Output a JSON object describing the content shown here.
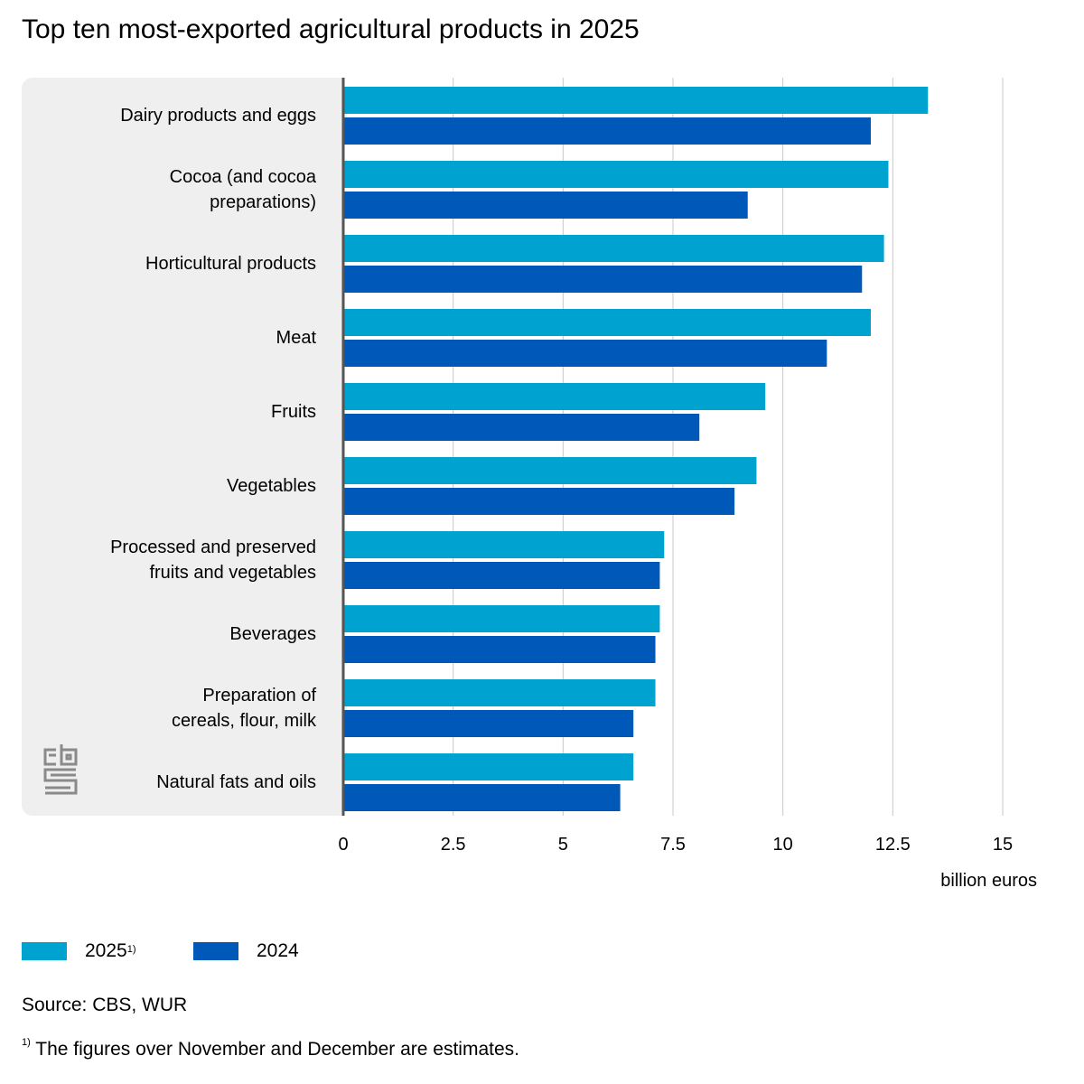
{
  "title": "Top ten most-exported agricultural products in 2025",
  "chart_data": {
    "type": "bar",
    "orientation": "horizontal",
    "title": "Top ten most-exported agricultural products in 2025",
    "categories": [
      "Dairy products and eggs",
      "Cocoa (and cocoa preparations)",
      "Horticultural products",
      "Meat",
      "Fruits",
      "Vegetables",
      "Processed and preserved fruits and vegetables",
      "Beverages",
      "Preparation of cereals, flour, milk",
      "Natural fats and oils"
    ],
    "category_lines": [
      [
        "Dairy products and eggs"
      ],
      [
        "Cocoa (and cocoa",
        "preparations)"
      ],
      [
        "Horticultural products"
      ],
      [
        "Meat"
      ],
      [
        "Fruits"
      ],
      [
        "Vegetables"
      ],
      [
        "Processed and preserved",
        "fruits and vegetables"
      ],
      [
        "Beverages"
      ],
      [
        "Preparation of",
        "cereals, flour, milk"
      ],
      [
        "Natural fats and oils"
      ]
    ],
    "series": [
      {
        "name": "2025",
        "footnote_mark": "1)",
        "color": "#00a3cf",
        "values": [
          13.3,
          12.4,
          12.3,
          12.0,
          9.6,
          9.4,
          7.3,
          7.2,
          7.1,
          6.6
        ]
      },
      {
        "name": "2024",
        "color": "#0058b8",
        "values": [
          12.0,
          9.2,
          11.8,
          11.0,
          8.1,
          8.9,
          7.2,
          7.1,
          6.6,
          6.3
        ]
      }
    ],
    "xlabel": "billion euros",
    "xlim": [
      0,
      15
    ],
    "ticks": [
      "0",
      "2.5",
      "5",
      "7.5",
      "10",
      "12.5",
      "15"
    ],
    "grid": true,
    "legend_position": "bottom-left"
  },
  "source": "Source: CBS, WUR",
  "footnote_mark": "1)",
  "footnote": "The figures over November and December are estimates.",
  "logo": "cbs"
}
